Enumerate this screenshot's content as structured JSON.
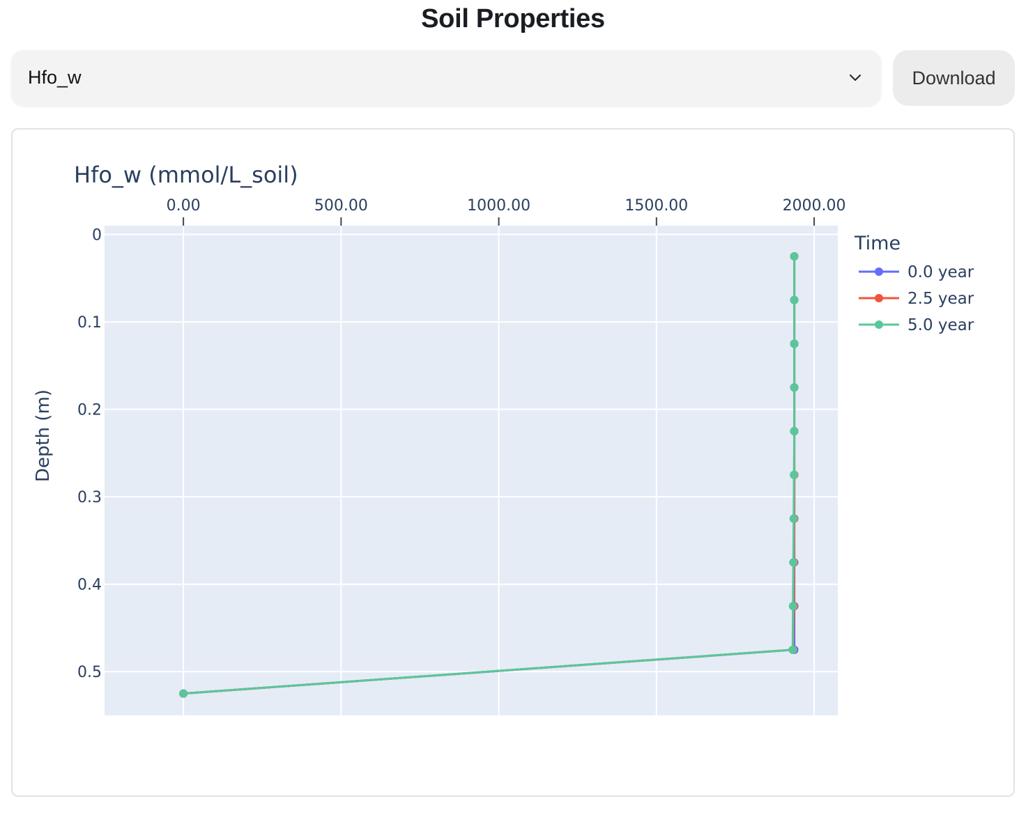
{
  "page": {
    "title": "Soil Properties"
  },
  "controls": {
    "selected_variable": "Hfo_w",
    "download_label": "Download"
  },
  "icons": {
    "dropdown": "chevron-down-icon"
  },
  "colors": {
    "plot_background": "#e5ecf6",
    "grid": "#ffffff",
    "text": "#2a3f5f"
  },
  "chart_data": {
    "type": "line",
    "title": "Hfo_w (mmol/L_soil)",
    "ylabel": "Depth (m)",
    "xlabel": "",
    "x_axis_position": "top",
    "y_axis_reversed": true,
    "xlim": [
      -250,
      2075
    ],
    "ylim": [
      0.55,
      -0.01
    ],
    "x_ticks": [
      0,
      500,
      1000,
      1500,
      2000
    ],
    "x_tick_labels": [
      "0.00",
      "500.00",
      "1000.00",
      "1500.00",
      "2000.00"
    ],
    "y_ticks": [
      0,
      0.1,
      0.2,
      0.3,
      0.4,
      0.5
    ],
    "y_tick_labels": [
      "0",
      "0.1",
      "0.2",
      "0.3",
      "0.4",
      "0.5"
    ],
    "grid": true,
    "legend": {
      "title": "Time",
      "placement": "right"
    },
    "series": [
      {
        "name": "0.0 year",
        "color": "#636efa",
        "points": [
          {
            "x": 1937,
            "y": 0.025
          },
          {
            "x": 1937,
            "y": 0.075
          },
          {
            "x": 1937,
            "y": 0.125
          },
          {
            "x": 1937,
            "y": 0.175
          },
          {
            "x": 1937,
            "y": 0.225
          },
          {
            "x": 1937,
            "y": 0.275
          },
          {
            "x": 1937,
            "y": 0.325
          },
          {
            "x": 1937,
            "y": 0.375
          },
          {
            "x": 1937,
            "y": 0.425
          },
          {
            "x": 1937,
            "y": 0.475
          },
          {
            "x": 0,
            "y": 0.525
          }
        ]
      },
      {
        "name": "2.5 year",
        "color": "#ef553b",
        "points": [
          {
            "x": 1937,
            "y": 0.025
          },
          {
            "x": 1937,
            "y": 0.075
          },
          {
            "x": 1937,
            "y": 0.125
          },
          {
            "x": 1937,
            "y": 0.175
          },
          {
            "x": 1937,
            "y": 0.225
          },
          {
            "x": 1937,
            "y": 0.275
          },
          {
            "x": 1937,
            "y": 0.325
          },
          {
            "x": 1936,
            "y": 0.375
          },
          {
            "x": 1936,
            "y": 0.425
          },
          {
            "x": 1933,
            "y": 0.475
          },
          {
            "x": 0,
            "y": 0.525
          }
        ]
      },
      {
        "name": "5.0 year",
        "color": "#5ac79a",
        "points": [
          {
            "x": 1937,
            "y": 0.025
          },
          {
            "x": 1937,
            "y": 0.075
          },
          {
            "x": 1937,
            "y": 0.125
          },
          {
            "x": 1937,
            "y": 0.175
          },
          {
            "x": 1937,
            "y": 0.225
          },
          {
            "x": 1936,
            "y": 0.275
          },
          {
            "x": 1935,
            "y": 0.325
          },
          {
            "x": 1934,
            "y": 0.375
          },
          {
            "x": 1933,
            "y": 0.425
          },
          {
            "x": 1932,
            "y": 0.475
          },
          {
            "x": 0,
            "y": 0.525
          }
        ]
      }
    ]
  }
}
